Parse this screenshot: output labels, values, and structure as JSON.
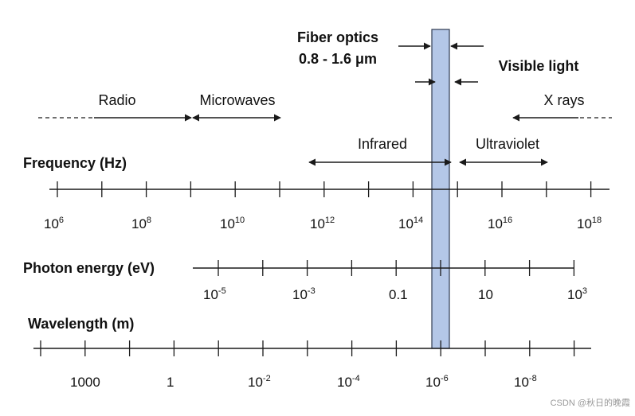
{
  "annotations": {
    "fiber_line1": "Fiber optics",
    "fiber_line2": "0.8 - 1.6 μm",
    "visible": "Visible light",
    "radio": "Radio",
    "microwaves": "Microwaves",
    "xrays": "X rays",
    "infrared": "Infrared",
    "ultraviolet": "Ultraviolet"
  },
  "axes": {
    "frequency": {
      "title": "Frequency (Hz)",
      "labels": [
        {
          "base": "10",
          "exp": "6"
        },
        {
          "base": "10",
          "exp": "8"
        },
        {
          "base": "10",
          "exp": "10"
        },
        {
          "base": "10",
          "exp": "12"
        },
        {
          "base": "10",
          "exp": "14"
        },
        {
          "base": "10",
          "exp": "16"
        },
        {
          "base": "10",
          "exp": "18"
        }
      ]
    },
    "photon": {
      "title": "Photon energy (eV)",
      "labels": [
        {
          "base": "10",
          "exp": "-5"
        },
        {
          "base": "10",
          "exp": "-3"
        },
        {
          "base": "0.1",
          "exp": ""
        },
        {
          "base": "10",
          "exp": ""
        },
        {
          "base": "10",
          "exp": "3"
        }
      ]
    },
    "wavelength": {
      "title": "Wavelength (m)",
      "labels": [
        {
          "base": "1000",
          "exp": ""
        },
        {
          "base": "1",
          "exp": ""
        },
        {
          "base": "10",
          "exp": "-2"
        },
        {
          "base": "10",
          "exp": "-4"
        },
        {
          "base": "10",
          "exp": "-6"
        },
        {
          "base": "10",
          "exp": "-8"
        }
      ]
    }
  },
  "colors": {
    "band_fill": "#b4c7e7",
    "band_stroke": "#2f3b52",
    "line": "#1a1a1a"
  },
  "watermark": "CSDN @秋日的晚霞"
}
